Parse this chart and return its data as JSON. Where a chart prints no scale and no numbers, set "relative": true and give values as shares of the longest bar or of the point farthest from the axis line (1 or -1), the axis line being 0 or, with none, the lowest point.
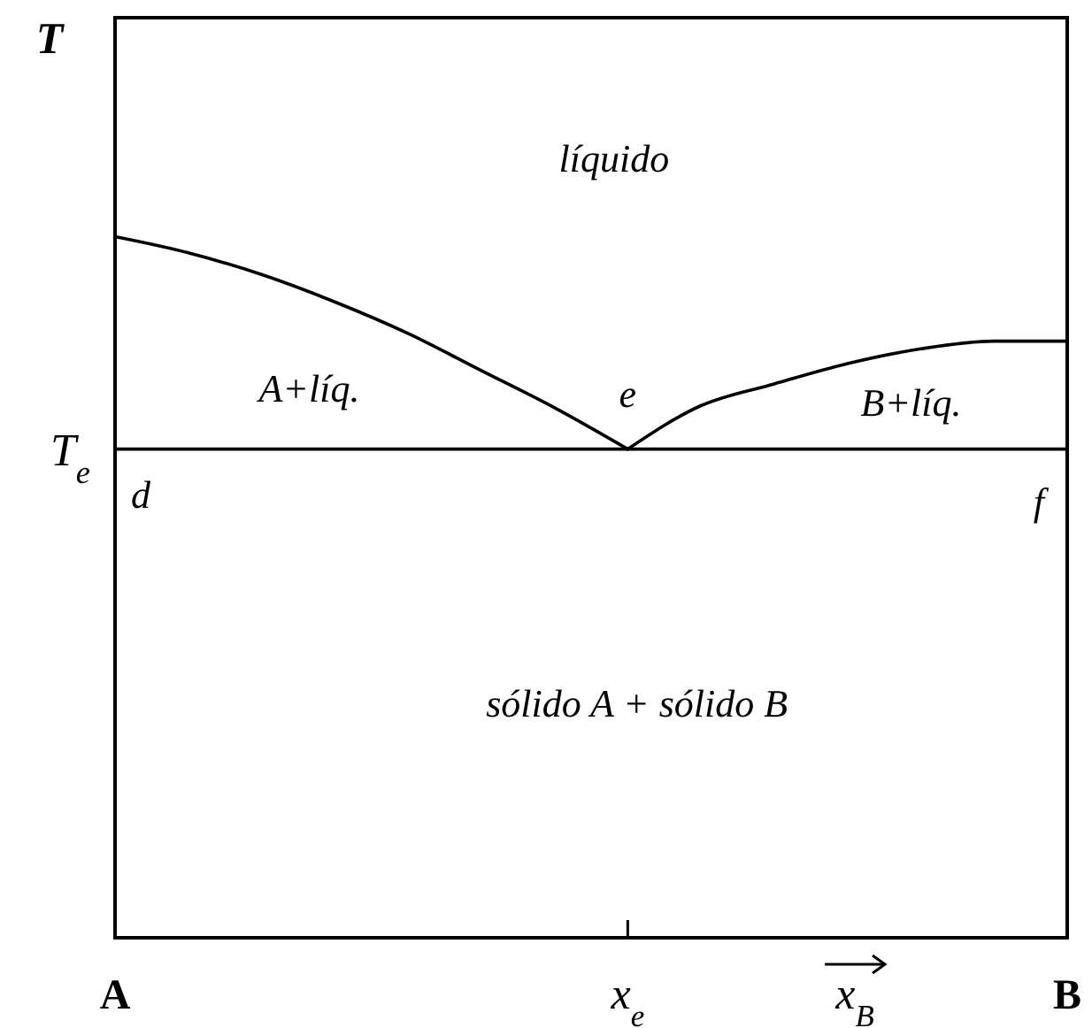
{
  "chart_data": {
    "type": "line",
    "relative": true,
    "ylabel": "T",
    "xlabel": "x$_{B}$",
    "categories": [
      "A",
      null,
      null,
      null,
      null,
      null,
      null,
      "x$_{e}$",
      null,
      null,
      null,
      null,
      null,
      "B"
    ],
    "series": [
      {
        "color": "#000000",
        "values": [
          1,
          0.977,
          0.946,
          0.907,
          0.862,
          0.809,
          0.756,
          0.697,
          null,
          null,
          null,
          null,
          null,
          null
        ]
      },
      {
        "color": "#000000",
        "values": [
          null,
          null,
          null,
          null,
          null,
          null,
          null,
          0.697,
          0.759,
          0.79,
          0.819,
          0.84,
          0.851,
          0.851
        ]
      }
    ],
    "ref_lines": [
      {
        "axis": "y",
        "value": 0.697,
        "label": "T$_{e}$",
        "color": "#000000"
      }
    ],
    "annotations": [
      "líquido",
      "A+líq.",
      {
        "text": "e",
        "x": "x$_{e}$",
        "y": 0.697
      },
      "B+líq.",
      {
        "text": "d",
        "x": "A",
        "y": 0.697
      },
      {
        "text": "f",
        "x": "B",
        "y": 0.697
      },
      "sólido A + sólido B"
    ]
  }
}
